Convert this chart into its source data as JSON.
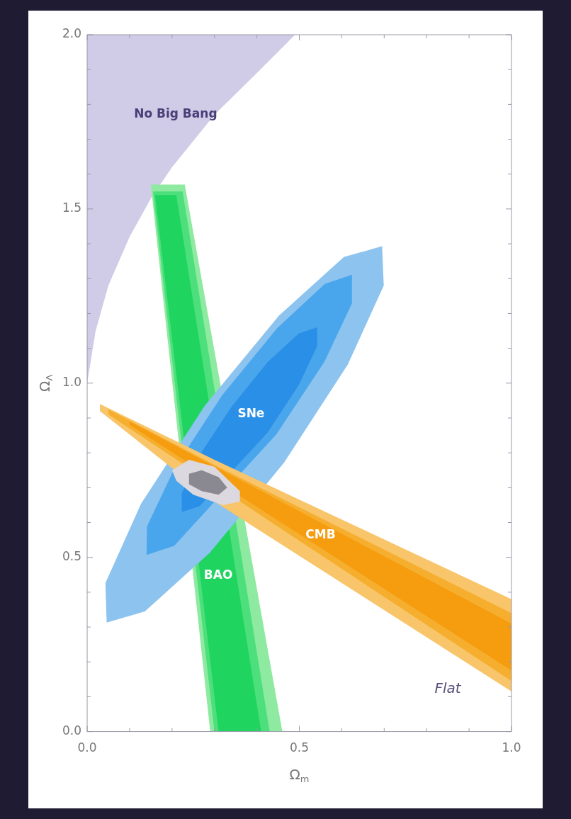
{
  "chart_data": {
    "type": "area",
    "xlabel": "Ω$_{m}$",
    "ylabel": "Ω$_{Λ}$",
    "xlim": [
      0,
      1
    ],
    "ylim": [
      0,
      2
    ],
    "xticks": [
      {
        "value": 0,
        "label": "0.0"
      },
      {
        "value": 0.1,
        "label": null
      },
      {
        "value": 0.2,
        "label": null
      },
      {
        "value": 0.3,
        "label": null
      },
      {
        "value": 0.4,
        "label": null
      },
      {
        "value": 0.5,
        "label": "0.5"
      },
      {
        "value": 0.6,
        "label": null
      },
      {
        "value": 0.7,
        "label": null
      },
      {
        "value": 0.8,
        "label": null
      },
      {
        "value": 0.9,
        "label": null
      },
      {
        "value": 1,
        "label": "1.0"
      }
    ],
    "yticks": [
      {
        "value": 0,
        "label": "0.0"
      },
      {
        "value": 0.1,
        "label": null
      },
      {
        "value": 0.2,
        "label": null
      },
      {
        "value": 0.3,
        "label": null
      },
      {
        "value": 0.4,
        "label": null
      },
      {
        "value": 0.5,
        "label": "0.5"
      },
      {
        "value": 0.6,
        "label": null
      },
      {
        "value": 0.7,
        "label": null
      },
      {
        "value": 0.8,
        "label": null
      },
      {
        "value": 0.9,
        "label": null
      },
      {
        "value": 1,
        "label": "1.0"
      },
      {
        "value": 1.1,
        "label": null
      },
      {
        "value": 1.2,
        "label": null
      },
      {
        "value": 1.3,
        "label": null
      },
      {
        "value": 1.4,
        "label": null
      },
      {
        "value": 1.5,
        "label": "1.5"
      },
      {
        "value": 1.6,
        "label": null
      },
      {
        "value": 1.7,
        "label": null
      },
      {
        "value": 1.8,
        "label": null
      },
      {
        "value": 1.9,
        "label": null
      },
      {
        "value": 2,
        "label": "2.0"
      }
    ],
    "grid": false,
    "legend": false,
    "series": [
      {
        "name": "No Big Bang",
        "color": "#d0cbe6",
        "x": [
          0,
          0.02,
          0.05,
          0.1,
          0.15,
          0.2,
          0.3,
          0.4,
          0.49,
          0.45,
          0.4,
          0.35,
          0.3,
          0.25,
          0.2,
          0.15,
          0.1,
          0.05,
          0,
          0
        ],
        "values": [
          1.0,
          1.15,
          1.28,
          1.42,
          1.53,
          1.62,
          1.77,
          1.89,
          2,
          2,
          2,
          2,
          2,
          2,
          2,
          2,
          2,
          2,
          2,
          1.0
        ]
      },
      {
        "color": "#8eeaa0",
        "x": [
          0.15,
          0.23,
          0.46,
          0.29,
          0.15
        ],
        "values": [
          1.57,
          1.57,
          0,
          0,
          1.57
        ]
      },
      {
        "color": "#4ddf7c",
        "x": [
          0.155,
          0.225,
          0.43,
          0.3,
          0.155
        ],
        "values": [
          1.55,
          1.55,
          0,
          0,
          1.55
        ]
      },
      {
        "name": "BAO",
        "color": "#1fd45f",
        "x": [
          0.16,
          0.21,
          0.358,
          0.384,
          0.397,
          0.41,
          0.31,
          0.3,
          0.2905,
          0.271,
          0.16
        ],
        "values": [
          1.54,
          1.54,
          0.4,
          0.2,
          0.1,
          0,
          0,
          0.1,
          0.2,
          0.4,
          1.54
        ]
      },
      {
        "color": "#8cc3ef",
        "x": [
          0.695,
          0.699,
          0.614,
          0.464,
          0.289,
          0.136,
          0.046,
          0.043,
          0.127,
          0.277,
          0.452,
          0.605,
          0.695
        ],
        "values": [
          1.393,
          1.28,
          1.053,
          0.772,
          0.513,
          0.345,
          0.313,
          0.426,
          0.654,
          0.935,
          1.194,
          1.362,
          1.393
        ]
      },
      {
        "color": "#4aa6ec",
        "x": [
          0.624,
          0.624,
          0.559,
          0.446,
          0.317,
          0.205,
          0.14,
          0.141,
          0.206,
          0.318,
          0.448,
          0.56,
          0.624
        ],
        "values": [
          1.311,
          1.229,
          1.061,
          0.853,
          null,
          0.533,
          0.507,
          0.589,
          0.756,
          0.965,
          1.158,
          1.285,
          1.311
        ]
      },
      {
        "name": "SNe",
        "color": "#2a8fe6",
        "x": [
          0.542,
          0.542,
          0.499,
          0.425,
          0.339,
          0.265,
          0.223,
          0.223,
          0.266,
          0.34,
          0.425,
          0.499,
          0.542
        ],
        "values": [
          1.16,
          1.106,
          0.995,
          0.858,
          null,
          0.647,
          0.63,
          0.684,
          0.795,
          0.932,
          1.06,
          1.143,
          1.16
        ]
      },
      {
        "color": "#f9c56a",
        "x": [
          0.03,
          0.3,
          1.0,
          1.0,
          0.3,
          0.03,
          0.03
        ],
        "values": [
          0.94,
          0.78,
          0.38,
          0.115,
          0.66,
          0.92,
          0.94
        ]
      },
      {
        "color": "#f6ae2e",
        "x": [
          0.05,
          0.3,
          1.0,
          1.0,
          0.3,
          0.05,
          0.05
        ],
        "values": [
          0.925,
          0.765,
          0.34,
          0.145,
          null,
          0.91,
          0.925
        ]
      },
      {
        "name": "CMB",
        "color": "#f59c0f",
        "x": [
          0.1,
          0.3,
          1.0,
          1.0,
          0.3,
          0.1,
          0.1
        ],
        "values": [
          0.89,
          null,
          0.31,
          0.175,
          null,
          0.88,
          0.89
        ]
      },
      {
        "color": "#dcd8e0",
        "x": [
          0.2,
          0.24,
          0.3,
          0.36,
          0.36,
          0.32,
          0.25,
          0.21,
          0.2
        ],
        "values": [
          0.75,
          0.78,
          0.76,
          0.69,
          0.66,
          0.65,
          0.68,
          0.72,
          0.75
        ]
      },
      {
        "color": "#8a8890",
        "x": [
          0.24,
          0.27,
          0.31,
          0.33,
          0.31,
          0.27,
          0.24,
          0.24
        ],
        "values": [
          0.74,
          0.75,
          0.73,
          0.7,
          0.68,
          0.69,
          0.71,
          0.74
        ]
      }
    ],
    "annotations": [
      "Flat"
    ]
  }
}
